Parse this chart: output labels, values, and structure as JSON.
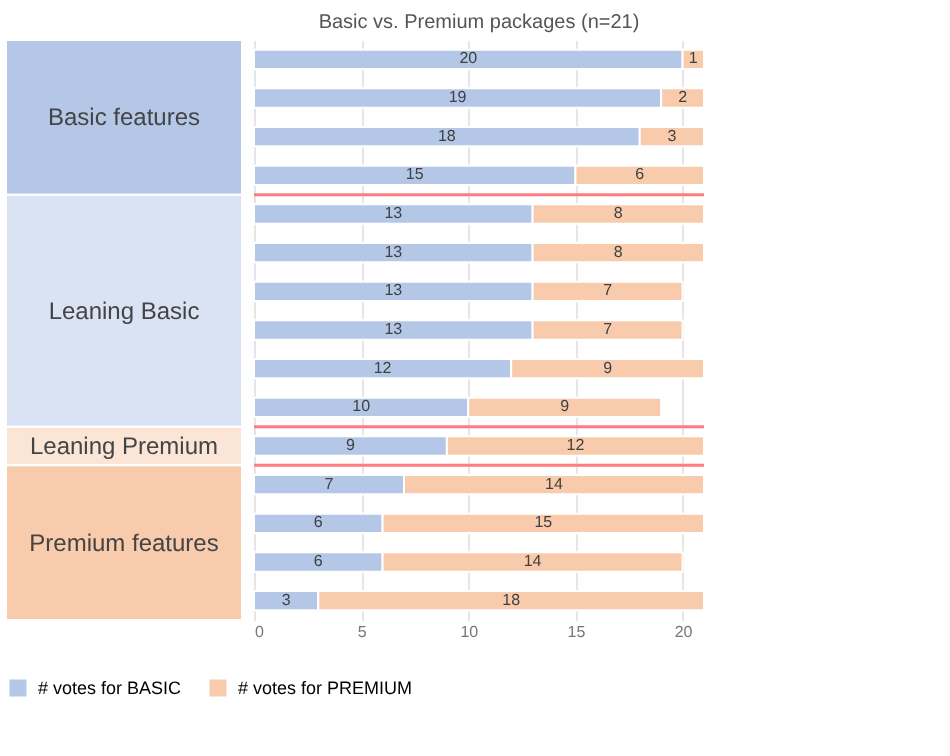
{
  "chart_data": {
    "type": "bar",
    "orientation": "horizontal",
    "stacked": true,
    "title": "Basic vs. Premium packages (n=21)",
    "categories": [
      null,
      null,
      null,
      null,
      null,
      null,
      null,
      null,
      null,
      null,
      null,
      null,
      null,
      null,
      null
    ],
    "series": [
      {
        "name": "# votes for BASIC",
        "color": "#b4c7e7",
        "values": [
          20,
          19,
          18,
          15,
          13,
          13,
          13,
          13,
          12,
          10,
          9,
          7,
          6,
          6,
          3
        ]
      },
      {
        "name": "# votes for PREMIUM",
        "color": "#f8cbad",
        "values": [
          1,
          2,
          3,
          6,
          8,
          8,
          7,
          7,
          9,
          9,
          12,
          14,
          15,
          14,
          18
        ]
      }
    ],
    "xlim": [
      0,
      21
    ],
    "xticks": [
      0,
      5,
      10,
      15,
      20
    ],
    "grid": "x",
    "legend": "bottom",
    "data_labels": true,
    "annotations": [
      "Basic features",
      "Leaning Basic",
      "Leaning Premium",
      "Premium features"
    ]
  }
}
